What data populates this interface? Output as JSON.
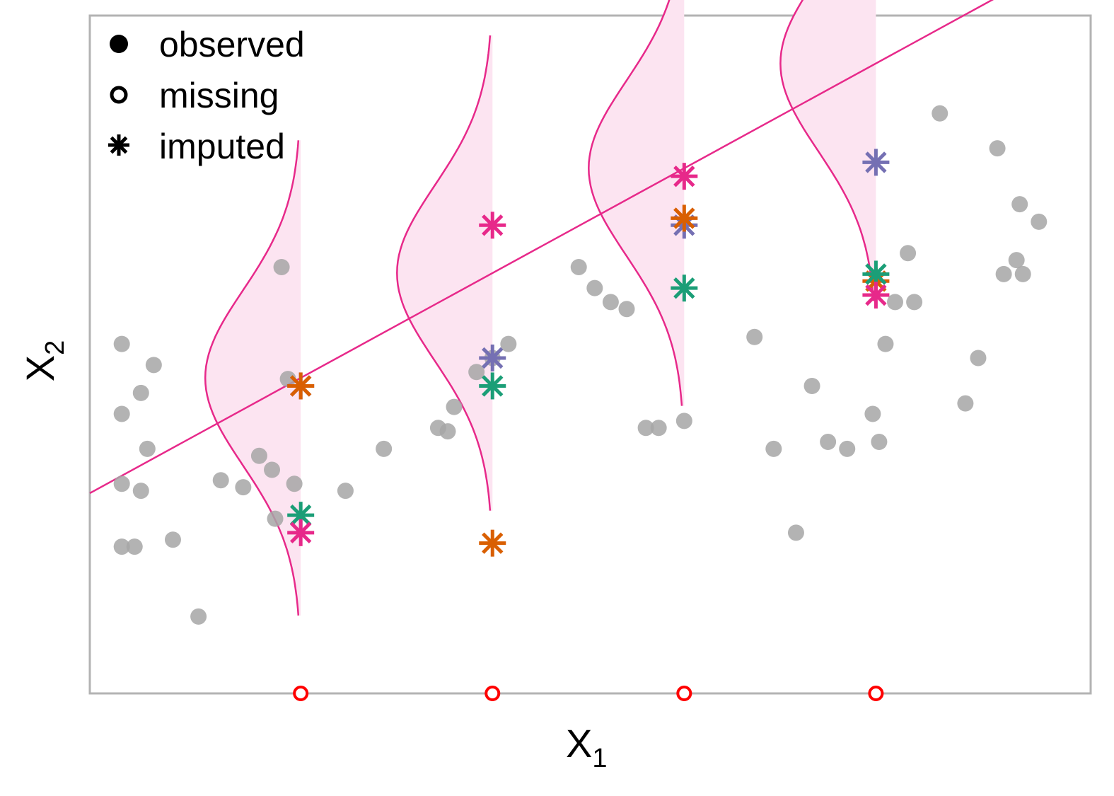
{
  "chart_data": {
    "type": "scatter",
    "title": "",
    "xlabel": "X",
    "xlabel_sub": "1",
    "ylabel": "X",
    "ylabel_sub": "2",
    "xlim": [
      -3.3,
      6.3
    ],
    "ylim": [
      -3.5,
      6.2
    ],
    "grid": false,
    "ticks": false,
    "legend": {
      "position": "top-left",
      "entries": [
        {
          "label": "observed",
          "marker": "filled-circle"
        },
        {
          "label": "missing",
          "marker": "open-circle"
        },
        {
          "label": "imputed",
          "marker": "asterisk"
        }
      ]
    },
    "colors": {
      "observed": "#a6a6a6",
      "missing": "#ff0000",
      "regression": "#e7298a",
      "density_fill": "#fce4f1",
      "imputation_sets": [
        "#7570b3",
        "#d95f02",
        "#1b9e77",
        "#e7298a"
      ]
    },
    "regression_line": {
      "intercept": 1.015,
      "slope": 0.5
    },
    "observed": [
      {
        "x": -2.8,
        "y": 0.5
      },
      {
        "x": -2.5,
        "y": 0.8
      },
      {
        "x": -2.8,
        "y": 1.5
      },
      {
        "x": -2.8,
        "y": -0.5
      },
      {
        "x": -2.5,
        "y": -0.6
      },
      {
        "x": -2.4,
        "y": 0.0
      },
      {
        "x": -2.8,
        "y": -1.4
      },
      {
        "x": -2.6,
        "y": -1.4
      },
      {
        "x": -2.0,
        "y": -1.3
      },
      {
        "x": -2.3,
        "y": 1.2
      },
      {
        "x": -1.6,
        "y": -2.4
      },
      {
        "x": -1.25,
        "y": -0.45
      },
      {
        "x": -0.9,
        "y": -0.55
      },
      {
        "x": -0.65,
        "y": -0.1
      },
      {
        "x": -0.45,
        "y": -0.3
      },
      {
        "x": -0.4,
        "y": -1.0
      },
      {
        "x": -0.3,
        "y": 2.6
      },
      {
        "x": -0.2,
        "y": 1.0
      },
      {
        "x": -0.1,
        "y": -0.5
      },
      {
        "x": 0.7,
        "y": -0.6
      },
      {
        "x": 1.3,
        "y": 0.0
      },
      {
        "x": 2.15,
        "y": 0.3
      },
      {
        "x": 2.3,
        "y": 0.25
      },
      {
        "x": 2.4,
        "y": 0.6
      },
      {
        "x": 2.75,
        "y": 1.1
      },
      {
        "x": 3.0,
        "y": 1.3
      },
      {
        "x": 3.25,
        "y": 1.5
      },
      {
        "x": 4.6,
        "y": 2.3
      },
      {
        "x": 4.35,
        "y": 2.6
      },
      {
        "x": 4.85,
        "y": 2.1
      },
      {
        "x": 5.1,
        "y": 2.0
      },
      {
        "x": 5.4,
        "y": 0.3
      },
      {
        "x": 5.6,
        "y": 0.3
      },
      {
        "x": 6.0,
        "y": 0.4
      },
      {
        "x": 7.1,
        "y": 1.6
      },
      {
        "x": 7.4,
        "y": 0.0
      },
      {
        "x": 7.75,
        "y": -1.2
      },
      {
        "x": 8.0,
        "y": 0.9
      },
      {
        "x": 8.25,
        "y": 0.1
      },
      {
        "x": 8.55,
        "y": 0.0
      },
      {
        "x": 9.05,
        "y": 0.1
      },
      {
        "x": 8.95,
        "y": 0.5
      },
      {
        "x": 9.15,
        "y": 1.5
      },
      {
        "x": 9.3,
        "y": 2.1
      },
      {
        "x": 9.5,
        "y": 2.8
      },
      {
        "x": 9.6,
        "y": 2.1
      },
      {
        "x": 10.0,
        "y": 4.8
      },
      {
        "x": 10.4,
        "y": 0.65
      },
      {
        "x": 10.6,
        "y": 1.3
      },
      {
        "x": 10.9,
        "y": 4.3
      },
      {
        "x": 11.0,
        "y": 2.5
      },
      {
        "x": 11.2,
        "y": 2.7
      },
      {
        "x": 11.3,
        "y": 2.5
      },
      {
        "x": 11.55,
        "y": 3.25
      },
      {
        "x": 11.25,
        "y": 3.5
      }
    ],
    "missing_x": [
      0,
      3,
      6,
      9
    ],
    "imputed": [
      {
        "x": 0,
        "values": [
          0.9,
          0.9,
          -0.95,
          -1.2
        ]
      },
      {
        "x": 3,
        "values": [
          1.3,
          -1.35,
          0.9,
          3.2
        ]
      },
      {
        "x": 6,
        "values": [
          3.2,
          3.3,
          2.3,
          3.9
        ]
      },
      {
        "x": 9,
        "values": [
          4.1,
          2.4,
          2.5,
          2.2
        ]
      }
    ]
  }
}
